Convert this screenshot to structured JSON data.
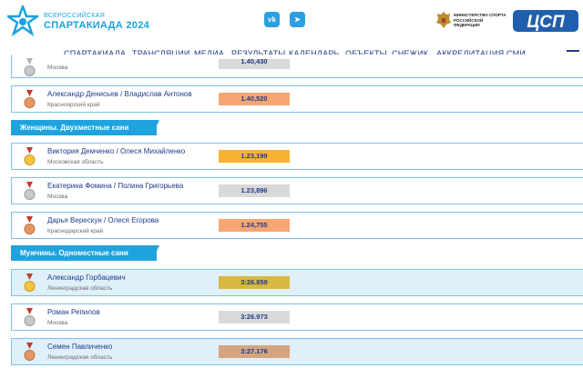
{
  "header": {
    "logo_small": "ВСЕРОССИЙСКАЯ",
    "logo_big": "СПАРТАКИАДА 2024",
    "social_vk": "vk",
    "social_tg": "➤",
    "ministry": "МИНИСТЕРСТВО СПОРТА РОССИЙСКОЙ ФЕДЕРАЦИИ",
    "csp": "ЦСП"
  },
  "nav": [
    "СПАРТАКИАДА",
    "ТРАНСЛЯЦИИ",
    "МЕДИА",
    "РЕЗУЛЬТАТЫ",
    "КАЛЕНДАРЬ",
    "ОБЪЕКТЫ",
    "СНЕЖИК",
    "АККРЕДИТАЦИЯ СМИ"
  ],
  "rows": [
    {
      "names": "",
      "region": "Москва",
      "result": "1.40,430",
      "medal": "silver"
    },
    {
      "names": "Александр Денисьев / Владислав Антонов",
      "region": "Красноярский край",
      "result": "1.40,520",
      "medal": "bronze"
    },
    {
      "names": "Виктория Демченко / Олеся Михайленко",
      "region": "Московская область",
      "result": "1.23,199",
      "medal": "gold"
    },
    {
      "names": "Екатерина Фомина / Полина Григорьева",
      "region": "Москва",
      "result": "1.23,896",
      "medal": "silver"
    },
    {
      "names": "Дарья Верескун / Олеся Егорова",
      "region": "Краснодарский край",
      "result": "1.24,755",
      "medal": "bronze"
    },
    {
      "names": "Александр Горбацевич",
      "region": "Ленинградская область",
      "result": "3:26.859",
      "medal": "gold"
    },
    {
      "names": "Роман Репилов",
      "region": "Москва",
      "result": "3:26.973",
      "medal": "silver"
    },
    {
      "names": "Семен Павличенко",
      "region": "Ленинградская область",
      "result": "3:27.176",
      "medal": "bronze"
    }
  ],
  "sections": [
    "Женщины. Двухместные сани",
    "Мужчины. Одноместные сани"
  ],
  "colors": {
    "gold": "#f9b233",
    "gold_hl": "#d8b744",
    "silver": "#d9d9d9",
    "bronze": "#f5a673",
    "bronze_hl": "#d4a57e",
    "accent": "#1fa3df",
    "text": "#1f3a8a"
  }
}
